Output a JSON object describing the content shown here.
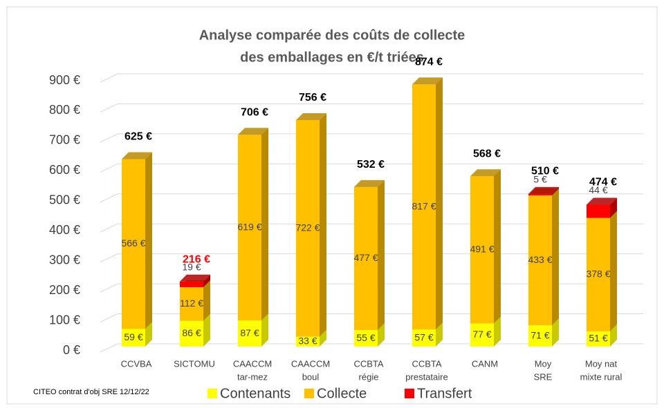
{
  "chart_data": {
    "type": "bar3d_stacked",
    "title": [
      "Analyse comparée des coûts de collecte",
      "des emballages en €/t triées"
    ],
    "categories": [
      [
        "CCVBA"
      ],
      [
        "SICTOMU"
      ],
      [
        "CAACCM",
        "tar-mez"
      ],
      [
        "CAACCM",
        "boul"
      ],
      [
        "CCBTA",
        "régie"
      ],
      [
        "CCBTA",
        "prestataire"
      ],
      [
        "CANM"
      ],
      [
        "Moy",
        "SRE"
      ],
      [
        "Moy nat",
        "mixte rural"
      ]
    ],
    "series": [
      {
        "name": "Contenants",
        "color": "#ffff00",
        "side": "#c9c900",
        "values": [
          59,
          86,
          87,
          33,
          55,
          57,
          77,
          71,
          51
        ],
        "value_labels": [
          "59 €",
          "86 €",
          "87 €",
          "33 €",
          "55 €",
          "57 €",
          "77 €",
          "71 €",
          "51 €"
        ]
      },
      {
        "name": "Collecte",
        "color": "#ffc000",
        "side": "#b88a00",
        "values": [
          566,
          112,
          619,
          722,
          477,
          817,
          491,
          433,
          378
        ],
        "value_labels": [
          "566 €",
          "112 €",
          "619 €",
          "722 €",
          "477 €",
          "817 €",
          "491 €",
          "433 €",
          "378 €"
        ]
      },
      {
        "name": "Transfert",
        "color": "#ff0000",
        "side": "#b00000",
        "values": [
          null,
          19,
          null,
          null,
          null,
          null,
          null,
          5,
          44
        ],
        "value_labels": [
          null,
          "19 €",
          null,
          null,
          null,
          null,
          null,
          "5 €",
          "44 €"
        ]
      }
    ],
    "totals": {
      "values": [
        625,
        216,
        706,
        756,
        532,
        874,
        568,
        510,
        474
      ],
      "value_labels": [
        "625 €",
        "216 €",
        "706 €",
        "756 €",
        "532 €",
        "874 €",
        "568 €",
        "510 €",
        "474 €"
      ],
      "colors": [
        "#000000",
        "#ff0000",
        "#000000",
        "#000000",
        "#000000",
        "#000000",
        "#000000",
        "#000000",
        "#000000"
      ]
    },
    "ylim": [
      0,
      900
    ],
    "yticks": [
      {
        "value": 0,
        "label": "0 €"
      },
      {
        "value": 100,
        "label": "100 €"
      },
      {
        "value": 200,
        "label": "200 €"
      },
      {
        "value": 300,
        "label": "300 €"
      },
      {
        "value": 400,
        "label": "400 €"
      },
      {
        "value": 500,
        "label": "500 €"
      },
      {
        "value": 600,
        "label": "600 €"
      },
      {
        "value": 700,
        "label": "700 €"
      },
      {
        "value": 800,
        "label": "800 €"
      },
      {
        "value": 900,
        "label": "900 €"
      }
    ],
    "grid": true,
    "legend": "bottom",
    "source": "CITEO contrat d'obj SRE 12/12/22"
  }
}
